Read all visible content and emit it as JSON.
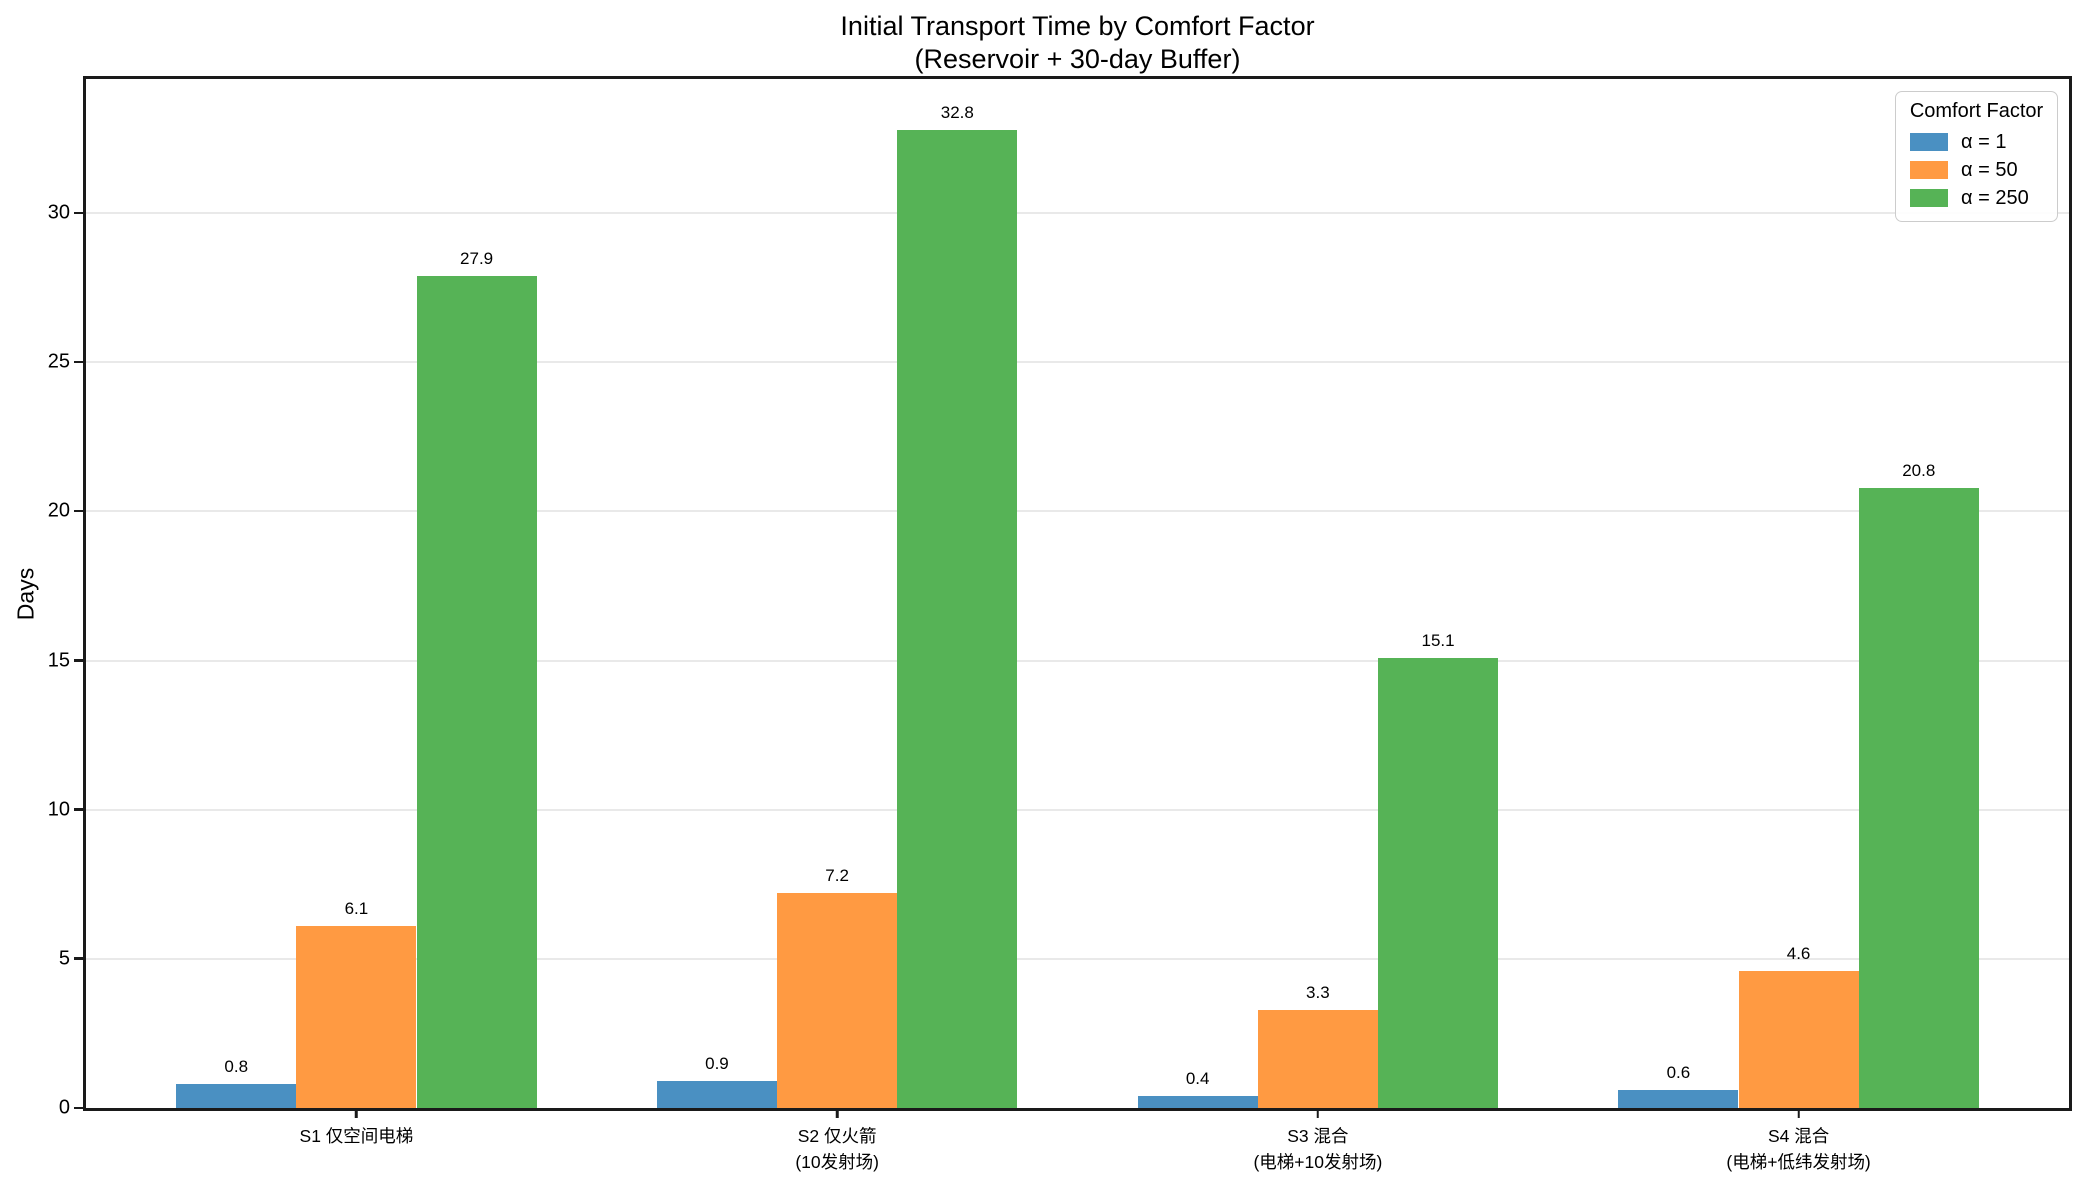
{
  "title": {
    "line1": "Initial Transport Time by Comfort Factor",
    "line2": "(Reservoir + 30-day Buffer)"
  },
  "legend": {
    "title": "Comfort Factor",
    "position": "upper right"
  },
  "chart_data": {
    "type": "bar",
    "title": "Initial Transport Time by Comfort Factor (Reservoir + 30-day Buffer)",
    "xlabel": "",
    "ylabel": "Days",
    "categories": [
      "S1 仅空间电梯",
      "S2 仅火箭\n(10发射场)",
      "S3 混合\n(电梯+10发射场)",
      "S4 混合\n(电梯+低纬发射场)"
    ],
    "series": [
      {
        "name": "α = 1",
        "color": "#4a90c2",
        "values": [
          0.8,
          0.9,
          0.4,
          0.6
        ]
      },
      {
        "name": "α = 50",
        "color": "#ff9a42",
        "values": [
          6.1,
          7.2,
          3.3,
          4.6
        ]
      },
      {
        "name": "α = 250",
        "color": "#56b356",
        "values": [
          27.9,
          32.8,
          15.1,
          20.8
        ]
      }
    ],
    "bar_value_labels": [
      [
        "0.8",
        "0.9",
        "0.4",
        "0.6"
      ],
      [
        "6.1",
        "7.2",
        "3.3",
        "4.6"
      ],
      [
        "27.9",
        "32.8",
        "15.1",
        "20.8"
      ]
    ],
    "yticks": [
      0,
      5,
      10,
      15,
      20,
      25,
      30
    ],
    "ylim": [
      0,
      34.5
    ],
    "grid": "horizontal",
    "grid_color": "#e9e9e9",
    "spine_color": "#1a1a1a",
    "legend_position": "upper right"
  }
}
